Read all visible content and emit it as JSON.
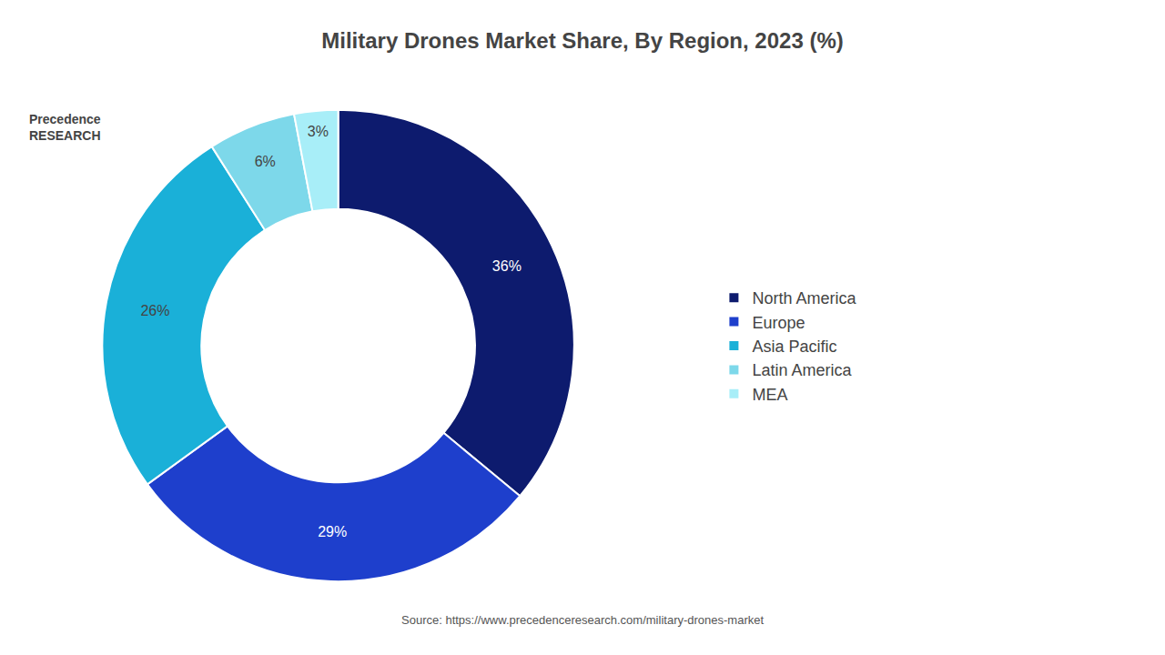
{
  "chart_data": {
    "type": "donut",
    "title": "Military Drones Market Share, By Region, 2023 (%)",
    "categories": [
      "North America",
      "Europe",
      "Asia Pacific",
      "Latin America",
      "MEA"
    ],
    "values": [
      36,
      29,
      26,
      6,
      3
    ],
    "value_labels": [
      "36%",
      "29%",
      "26%",
      "6%",
      "3%"
    ],
    "colors": [
      "#0d1b6e",
      "#1e3fcc",
      "#1ab0d8",
      "#7dd8ea",
      "#a8eef8"
    ],
    "data_labels": true,
    "legend": "right",
    "annotations": [
      "Source: https://www.precedenceresearch.com/military-drones-market",
      "Precedence\nRESEARCH"
    ]
  }
}
